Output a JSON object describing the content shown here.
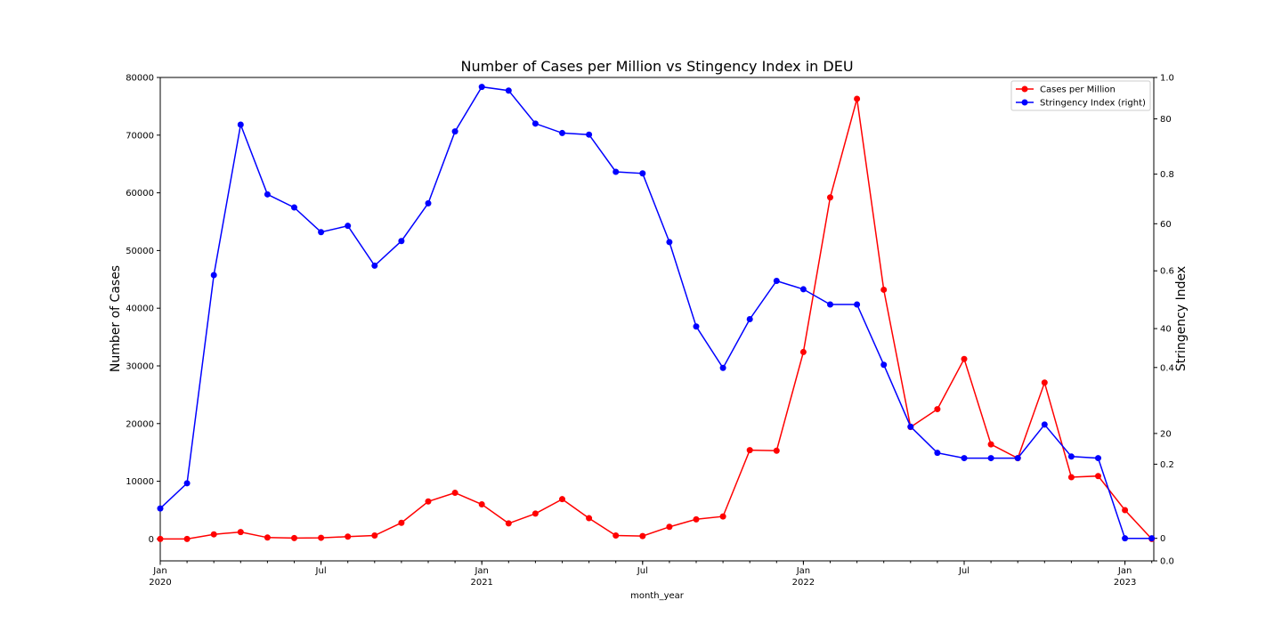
{
  "chart_data": {
    "type": "line",
    "title": "Number of Cases per Million vs Stingency Index in DEU",
    "xlabel": "month_year",
    "ylabel": "Number of Cases",
    "y2label": "Stringency Index",
    "x": [
      "2020-01",
      "2020-02",
      "2020-03",
      "2020-04",
      "2020-05",
      "2020-06",
      "2020-07",
      "2020-08",
      "2020-09",
      "2020-10",
      "2020-11",
      "2020-12",
      "2021-01",
      "2021-02",
      "2021-03",
      "2021-04",
      "2021-05",
      "2021-06",
      "2021-07",
      "2021-08",
      "2021-09",
      "2021-10",
      "2021-11",
      "2021-12",
      "2022-01",
      "2022-02",
      "2022-03",
      "2022-04",
      "2022-05",
      "2022-06",
      "2022-07",
      "2022-08",
      "2022-09",
      "2022-10",
      "2022-11",
      "2022-12",
      "2023-01",
      "2023-02"
    ],
    "x_tick_labels": [
      {
        "month": 0,
        "label": "Jan",
        "sub": "2020"
      },
      {
        "month": 6,
        "label": "Jul",
        "sub": ""
      },
      {
        "month": 12,
        "label": "Jan",
        "sub": "2021"
      },
      {
        "month": 18,
        "label": "Jul",
        "sub": ""
      },
      {
        "month": 24,
        "label": "Jan",
        "sub": "2022"
      },
      {
        "month": 30,
        "label": "Jul",
        "sub": ""
      },
      {
        "month": 36,
        "label": "Jan",
        "sub": "2023"
      }
    ],
    "ylim": [
      -3800,
      80000
    ],
    "yticks": [
      0,
      10000,
      20000,
      30000,
      40000,
      50000,
      60000,
      70000,
      80000
    ],
    "y2lim": [
      -4.3,
      87.9
    ],
    "y2ticks": [
      0,
      20,
      40,
      60,
      80
    ],
    "y2_fraction_ticks": [
      "0.0",
      "0.2",
      "0.4",
      "0.6",
      "0.8",
      "1.0"
    ],
    "series": [
      {
        "name": "Cases per Million",
        "axis": "left",
        "color": "#ff0000",
        "values": [
          0,
          0,
          800,
          1200,
          250,
          150,
          200,
          400,
          600,
          2800,
          6500,
          8000,
          6000,
          2700,
          4400,
          6900,
          3600,
          600,
          500,
          2100,
          3400,
          3900,
          15400,
          15300,
          32400,
          59200,
          76300,
          43200,
          19400,
          22500,
          31200,
          16400,
          14000,
          27100,
          10700,
          10900,
          5000,
          0
        ]
      },
      {
        "name": "Stringency Index (right)",
        "axis": "right",
        "color": "#0000ff",
        "values": [
          5.7,
          10.5,
          50.2,
          78.9,
          65.6,
          63.1,
          58.4,
          59.6,
          52.0,
          56.7,
          63.9,
          77.6,
          86.1,
          85.4,
          79.1,
          77.3,
          77.0,
          69.9,
          69.6,
          56.5,
          40.4,
          32.5,
          41.8,
          49.1,
          47.5,
          44.6,
          44.6,
          33.1,
          21.3,
          16.3,
          15.3,
          15.3,
          15.3,
          21.7,
          15.6,
          15.3,
          0,
          0
        ]
      }
    ],
    "legend": {
      "placement": "top-right"
    },
    "grid": false
  }
}
